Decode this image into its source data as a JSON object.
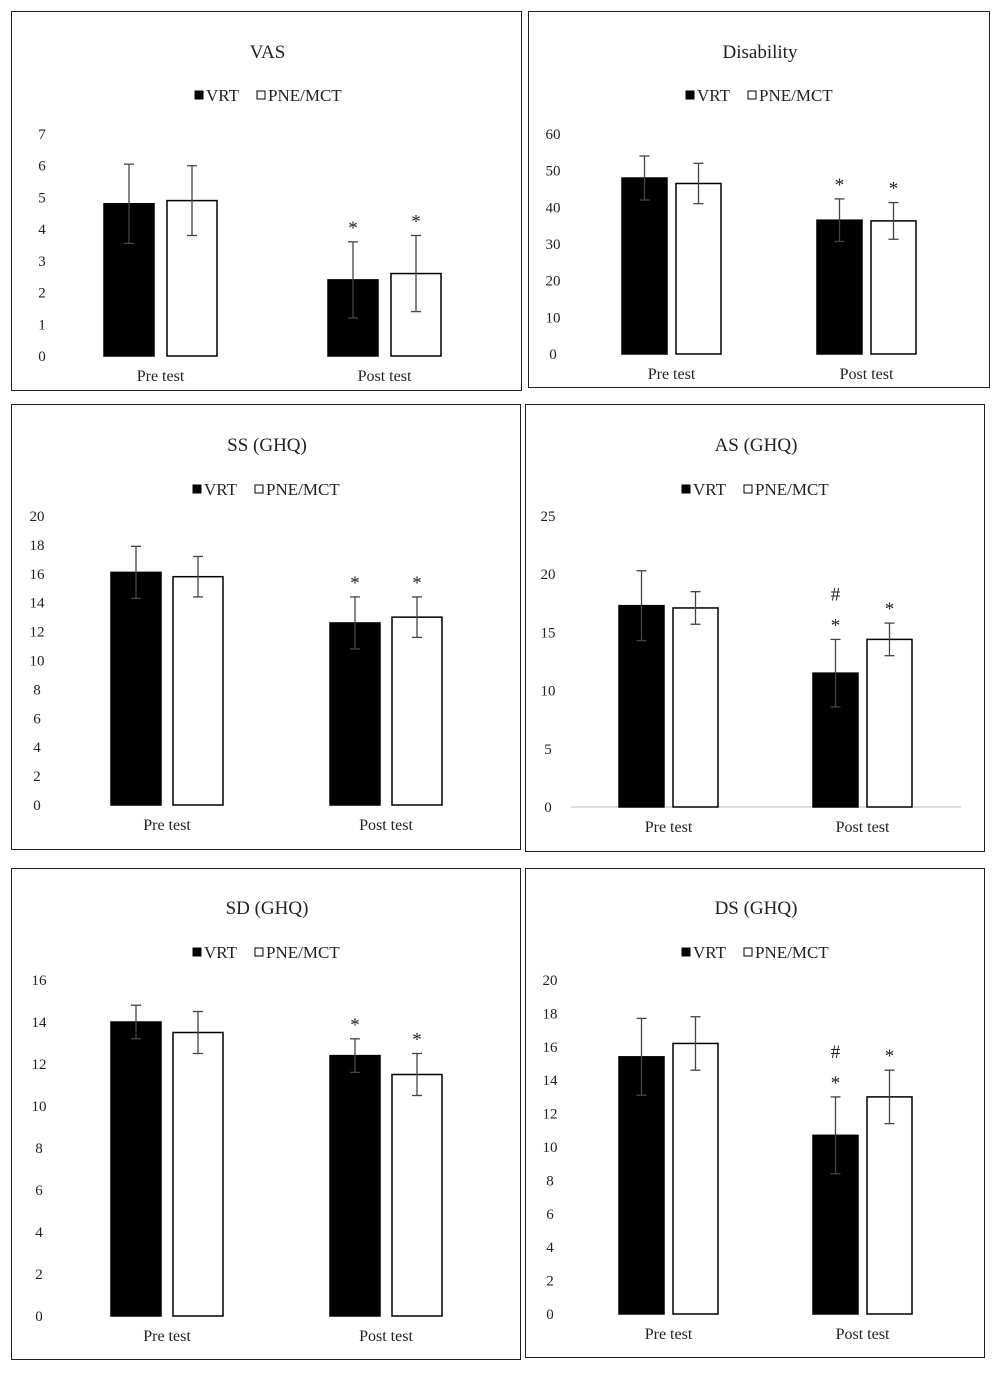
{
  "legend": {
    "series": [
      {
        "name": "VRT",
        "fill": "#000000",
        "stroke": "#000000"
      },
      {
        "name": "PNE/MCT",
        "fill": "#ffffff",
        "stroke": "#000000"
      }
    ]
  },
  "colors": {
    "bar_outline": "#000000",
    "error_bar": "#444444",
    "panel_border": "#222222"
  },
  "chart_data": [
    {
      "type": "bar",
      "title": "VAS",
      "categories": [
        "Pre test",
        "Post test"
      ],
      "ylim": [
        0,
        7
      ],
      "yticks": [
        0,
        1,
        2,
        3,
        4,
        5,
        6,
        7
      ],
      "baseline_axis": false,
      "series": [
        {
          "name": "VRT",
          "values": [
            4.8,
            2.4
          ],
          "errors": [
            1.25,
            1.2
          ]
        },
        {
          "name": "PNE/MCT",
          "values": [
            4.9,
            2.6
          ],
          "errors": [
            1.1,
            1.2
          ]
        }
      ],
      "annotations": [
        {
          "category": "Post test",
          "series": "VRT",
          "marks": [
            "*"
          ]
        },
        {
          "category": "Post test",
          "series": "PNE/MCT",
          "marks": [
            "*"
          ]
        }
      ]
    },
    {
      "type": "bar",
      "title": "Disability",
      "categories": [
        "Pre test",
        "Post test"
      ],
      "ylim": [
        0,
        60
      ],
      "yticks": [
        0,
        10,
        20,
        30,
        40,
        50,
        60
      ],
      "baseline_axis": false,
      "series": [
        {
          "name": "VRT",
          "values": [
            48,
            36.5
          ],
          "errors": [
            6,
            5.8
          ]
        },
        {
          "name": "PNE/MCT",
          "values": [
            46.5,
            36.3
          ],
          "errors": [
            5.5,
            5
          ]
        }
      ],
      "annotations": [
        {
          "category": "Post test",
          "series": "VRT",
          "marks": [
            "*"
          ]
        },
        {
          "category": "Post test",
          "series": "PNE/MCT",
          "marks": [
            "*"
          ]
        }
      ]
    },
    {
      "type": "bar",
      "title": "SS (GHQ)",
      "categories": [
        "Pre test",
        "Post test"
      ],
      "ylim": [
        0,
        20
      ],
      "yticks": [
        0,
        2,
        4,
        6,
        8,
        10,
        12,
        14,
        16,
        18,
        20
      ],
      "baseline_axis": false,
      "series": [
        {
          "name": "VRT",
          "values": [
            16.1,
            12.6
          ],
          "errors": [
            1.8,
            1.8
          ]
        },
        {
          "name": "PNE/MCT",
          "values": [
            15.8,
            13
          ],
          "errors": [
            1.4,
            1.4
          ]
        }
      ],
      "annotations": [
        {
          "category": "Post test",
          "series": "VRT",
          "marks": [
            "*"
          ]
        },
        {
          "category": "Post test",
          "series": "PNE/MCT",
          "marks": [
            "*"
          ]
        }
      ]
    },
    {
      "type": "bar",
      "title": "AS (GHQ)",
      "categories": [
        "Pre test",
        "Post test"
      ],
      "ylim": [
        0,
        25
      ],
      "yticks": [
        0,
        5,
        10,
        15,
        20,
        25
      ],
      "baseline_axis": true,
      "series": [
        {
          "name": "VRT",
          "values": [
            17.3,
            11.5
          ],
          "errors": [
            3,
            2.9
          ]
        },
        {
          "name": "PNE/MCT",
          "values": [
            17.1,
            14.4
          ],
          "errors": [
            1.4,
            1.4
          ]
        }
      ],
      "annotations": [
        {
          "category": "Post test",
          "series": "VRT",
          "marks": [
            "*",
            "#"
          ]
        },
        {
          "category": "Post test",
          "series": "PNE/MCT",
          "marks": [
            "*"
          ]
        }
      ]
    },
    {
      "type": "bar",
      "title": "SD (GHQ)",
      "categories": [
        "Pre test",
        "Post test"
      ],
      "ylim": [
        0,
        16
      ],
      "yticks": [
        0,
        2,
        4,
        6,
        8,
        10,
        12,
        14,
        16
      ],
      "baseline_axis": false,
      "series": [
        {
          "name": "VRT",
          "values": [
            14,
            12.4
          ],
          "errors": [
            0.8,
            0.8
          ]
        },
        {
          "name": "PNE/MCT",
          "values": [
            13.5,
            11.5
          ],
          "errors": [
            1,
            1
          ]
        }
      ],
      "annotations": [
        {
          "category": "Post test",
          "series": "VRT",
          "marks": [
            "*"
          ]
        },
        {
          "category": "Post test",
          "series": "PNE/MCT",
          "marks": [
            "*"
          ]
        }
      ]
    },
    {
      "type": "bar",
      "title": "DS (GHQ)",
      "categories": [
        "Pre test",
        "Post test"
      ],
      "ylim": [
        0,
        20
      ],
      "yticks": [
        0,
        2,
        4,
        6,
        8,
        10,
        12,
        14,
        16,
        18,
        20
      ],
      "baseline_axis": false,
      "series": [
        {
          "name": "VRT",
          "values": [
            15.4,
            10.7
          ],
          "errors": [
            2.3,
            2.3
          ]
        },
        {
          "name": "PNE/MCT",
          "values": [
            16.2,
            13
          ],
          "errors": [
            1.6,
            1.6
          ]
        }
      ],
      "annotations": [
        {
          "category": "Post test",
          "series": "VRT",
          "marks": [
            "*",
            "#"
          ]
        },
        {
          "category": "Post test",
          "series": "PNE/MCT",
          "marks": [
            "*"
          ]
        }
      ]
    }
  ]
}
